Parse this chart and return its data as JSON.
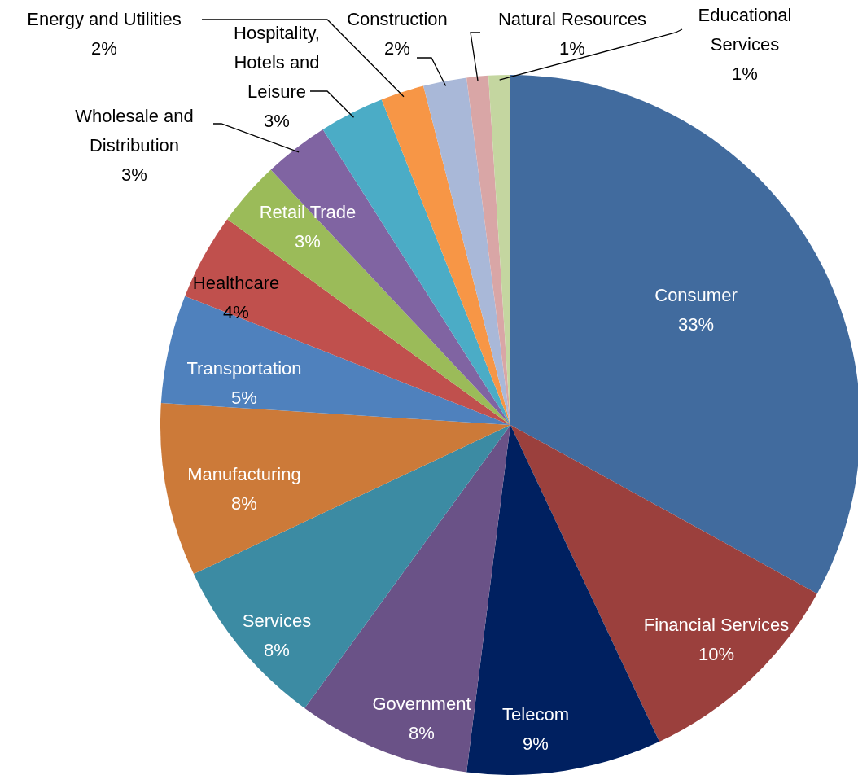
{
  "chart_data": {
    "type": "pie",
    "categories": [
      "Consumer",
      "Financial Services",
      "Telecom",
      "Government",
      "Services",
      "Manufacturing",
      "Transportation",
      "Healthcare",
      "Retail Trade",
      "Wholesale and Distribution",
      "Hospitality, Hotels and Leisure",
      "Energy and Utilities",
      "Construction",
      "Natural Resources",
      "Educational Services"
    ],
    "values": [
      33,
      10,
      9,
      8,
      8,
      8,
      5,
      4,
      3,
      3,
      3,
      2,
      2,
      1,
      1
    ],
    "value_labels": [
      "33%",
      "10%",
      "9%",
      "8%",
      "8%",
      "8%",
      "5%",
      "4%",
      "3%",
      "3%",
      "3%",
      "2%",
      "2%",
      "1%",
      "1%"
    ],
    "colors": [
      "#416b9e",
      "#9b403d",
      "#002060",
      "#6a5287",
      "#3c8ba3",
      "#cc7a39",
      "#4f81bd",
      "#c0504d",
      "#9bbb59",
      "#8064a2",
      "#4bacc6",
      "#f79646",
      "#a9b8d8",
      "#d9a6a6",
      "#c4d6a0"
    ]
  }
}
